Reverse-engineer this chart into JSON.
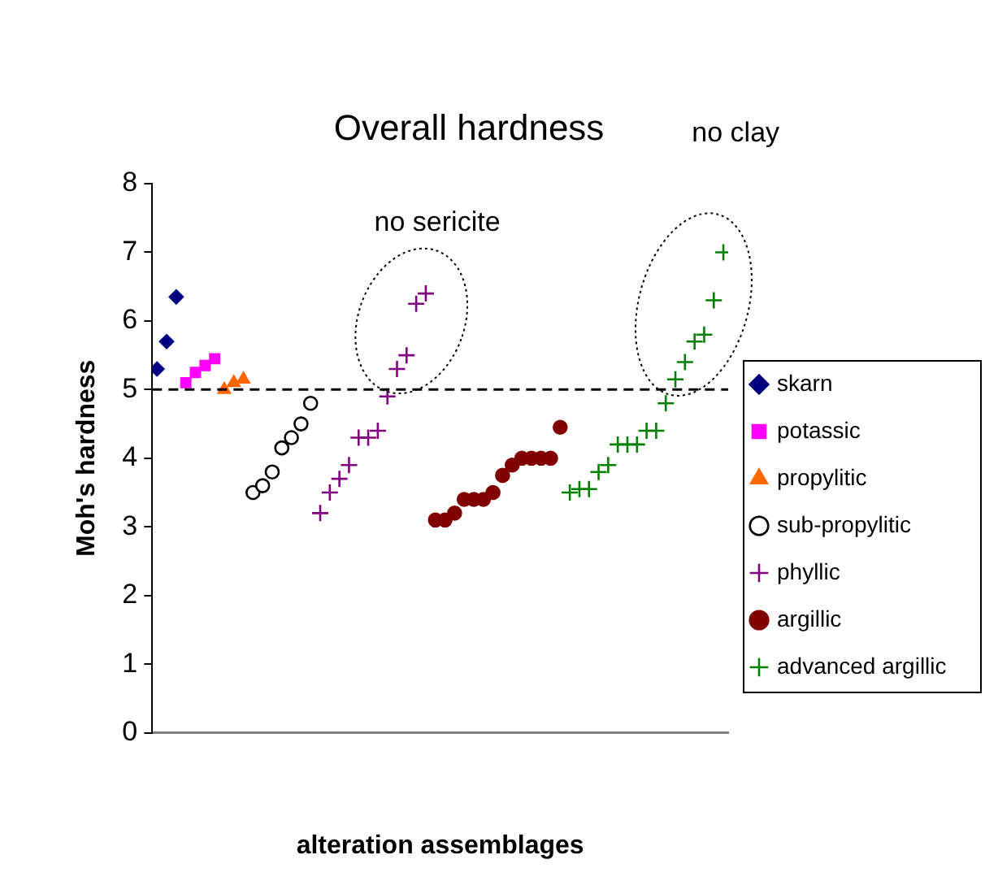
{
  "chart_data": {
    "type": "scatter",
    "title": "Overall hardness",
    "xlabel": "alteration assemblages",
    "ylabel": "Moh's hardness",
    "categories": [
      null,
      null,
      null,
      null,
      null,
      null,
      null,
      null,
      null,
      null,
      null,
      null,
      null,
      null,
      null,
      null,
      null,
      null,
      null,
      null,
      null,
      null,
      null,
      null,
      null,
      null,
      null,
      null,
      null,
      null,
      null,
      null,
      null,
      null,
      null,
      null,
      null,
      null,
      null,
      null,
      null,
      null,
      null,
      null,
      null,
      null,
      null,
      null,
      null,
      null,
      null,
      null,
      null,
      null,
      null,
      null,
      null,
      null,
      null,
      null
    ],
    "ylim": [
      0,
      8
    ],
    "yticks": [
      0,
      1,
      2,
      3,
      4,
      5,
      6,
      7,
      8
    ],
    "grid": false,
    "legend": "right",
    "ref_lines": [
      {
        "axis": "y",
        "value": 5,
        "line_style": "dashed",
        "color": "#000000"
      }
    ],
    "annotations": [
      "no sericite",
      "no clay"
    ],
    "series": [
      {
        "name": "skarn",
        "color": "#000080",
        "marker": "diamond",
        "values": [
          5.3,
          5.7,
          6.35,
          null,
          null,
          null,
          null,
          null,
          null,
          null,
          null,
          null,
          null,
          null,
          null,
          null,
          null,
          null,
          null,
          null,
          null,
          null,
          null,
          null,
          null,
          null,
          null,
          null,
          null,
          null,
          null,
          null,
          null,
          null,
          null,
          null,
          null,
          null,
          null,
          null,
          null,
          null,
          null,
          null,
          null,
          null,
          null,
          null,
          null,
          null,
          null,
          null,
          null,
          null,
          null,
          null,
          null,
          null,
          null,
          null
        ]
      },
      {
        "name": "potassic",
        "color": "#ff00ff",
        "marker": "square",
        "values": [
          null,
          null,
          null,
          5.1,
          5.25,
          5.35,
          5.45,
          null,
          null,
          null,
          null,
          null,
          null,
          null,
          null,
          null,
          null,
          null,
          null,
          null,
          null,
          null,
          null,
          null,
          null,
          null,
          null,
          null,
          null,
          null,
          null,
          null,
          null,
          null,
          null,
          null,
          null,
          null,
          null,
          null,
          null,
          null,
          null,
          null,
          null,
          null,
          null,
          null,
          null,
          null,
          null,
          null,
          null,
          null,
          null,
          null,
          null,
          null,
          null,
          null
        ]
      },
      {
        "name": "propylitic",
        "color": "#ff6600",
        "marker": "triangle",
        "values": [
          null,
          null,
          null,
          null,
          null,
          null,
          null,
          5.0,
          5.1,
          5.15,
          null,
          null,
          null,
          null,
          null,
          null,
          null,
          null,
          null,
          null,
          null,
          null,
          null,
          null,
          null,
          null,
          null,
          null,
          null,
          null,
          null,
          null,
          null,
          null,
          null,
          null,
          null,
          null,
          null,
          null,
          null,
          null,
          null,
          null,
          null,
          null,
          null,
          null,
          null,
          null,
          null,
          null,
          null,
          null,
          null,
          null,
          null,
          null,
          null,
          null
        ]
      },
      {
        "name": "sub-propylitic",
        "color": "#000000",
        "marker": "circle",
        "values": [
          null,
          null,
          null,
          null,
          null,
          null,
          null,
          null,
          null,
          null,
          3.5,
          3.6,
          3.8,
          4.15,
          4.3,
          4.5,
          4.8,
          null,
          null,
          null,
          null,
          null,
          null,
          null,
          null,
          null,
          null,
          null,
          null,
          null,
          null,
          null,
          null,
          null,
          null,
          null,
          null,
          null,
          null,
          null,
          null,
          null,
          null,
          null,
          null,
          null,
          null,
          null,
          null,
          null,
          null,
          null,
          null,
          null,
          null,
          null,
          null,
          null,
          null,
          null
        ]
      },
      {
        "name": "phyllic",
        "color": "#800080",
        "marker": "cross",
        "values": [
          null,
          null,
          null,
          null,
          null,
          null,
          null,
          null,
          null,
          null,
          null,
          null,
          null,
          null,
          null,
          null,
          null,
          3.2,
          3.5,
          3.7,
          3.9,
          4.3,
          4.3,
          4.4,
          4.9,
          5.3,
          5.5,
          6.25,
          6.4,
          null,
          null,
          null,
          null,
          null,
          null,
          null,
          null,
          null,
          null,
          null,
          null,
          null,
          null,
          null,
          null,
          null,
          null,
          null,
          null,
          null,
          null,
          null,
          null,
          null,
          null,
          null,
          null,
          null,
          null,
          null
        ]
      },
      {
        "name": "argillic",
        "color": "#800000",
        "marker": "circle",
        "values": [
          null,
          null,
          null,
          null,
          null,
          null,
          null,
          null,
          null,
          null,
          null,
          null,
          null,
          null,
          null,
          null,
          null,
          null,
          null,
          null,
          null,
          null,
          null,
          null,
          null,
          null,
          null,
          null,
          null,
          3.1,
          3.1,
          3.2,
          3.4,
          3.4,
          3.4,
          3.5,
          3.75,
          3.9,
          4.0,
          4.0,
          4.0,
          4.0,
          4.45,
          null,
          null,
          null,
          null,
          null,
          null,
          null,
          null,
          null,
          null,
          null,
          null,
          null,
          null,
          null,
          null,
          null
        ]
      },
      {
        "name": "advanced argillic",
        "color": "#008000",
        "marker": "cross",
        "values": [
          null,
          null,
          null,
          null,
          null,
          null,
          null,
          null,
          null,
          null,
          null,
          null,
          null,
          null,
          null,
          null,
          null,
          null,
          null,
          null,
          null,
          null,
          null,
          null,
          null,
          null,
          null,
          null,
          null,
          null,
          null,
          null,
          null,
          null,
          null,
          null,
          null,
          null,
          null,
          null,
          null,
          null,
          null,
          3.5,
          3.55,
          3.55,
          3.8,
          3.9,
          4.2,
          4.2,
          4.2,
          4.4,
          4.4,
          4.8,
          5.15,
          5.4,
          5.7,
          5.8,
          6.3,
          7.0
        ]
      }
    ]
  }
}
